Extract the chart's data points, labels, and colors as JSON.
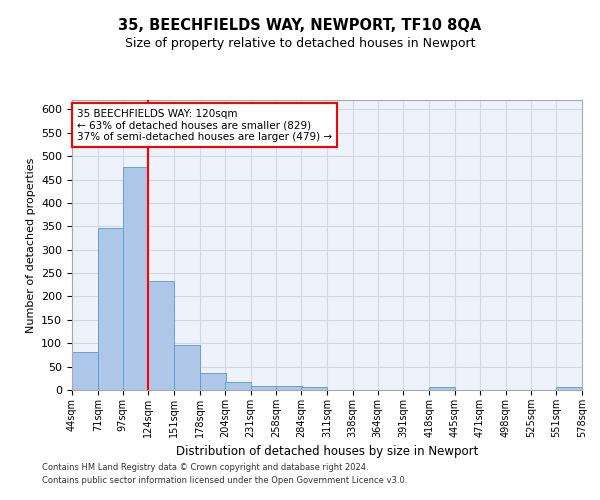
{
  "title1": "35, BEECHFIELDS WAY, NEWPORT, TF10 8QA",
  "title2": "Size of property relative to detached houses in Newport",
  "xlabel": "Distribution of detached houses by size in Newport",
  "ylabel": "Number of detached properties",
  "bins": [
    44,
    71,
    97,
    124,
    151,
    178,
    204,
    231,
    258,
    284,
    311,
    338,
    364,
    391,
    418,
    445,
    471,
    498,
    525,
    551,
    578
  ],
  "counts": [
    82,
    347,
    477,
    234,
    96,
    37,
    17,
    8,
    8,
    6,
    0,
    0,
    0,
    0,
    6,
    0,
    0,
    0,
    0,
    6
  ],
  "bar_color": "#aec6e8",
  "bar_edge_color": "#5a9ac9",
  "vline_x": 124,
  "vline_color": "red",
  "annotation_text": "35 BEECHFIELDS WAY: 120sqm\n← 63% of detached houses are smaller (829)\n37% of semi-detached houses are larger (479) →",
  "annotation_box_color": "red",
  "annotation_text_color": "black",
  "ylim": [
    0,
    620
  ],
  "yticks": [
    0,
    50,
    100,
    150,
    200,
    250,
    300,
    350,
    400,
    450,
    500,
    550,
    600
  ],
  "grid_color": "#d0d8e8",
  "background_color": "#eef2fa",
  "footer1": "Contains HM Land Registry data © Crown copyright and database right 2024.",
  "footer2": "Contains public sector information licensed under the Open Government Licence v3.0."
}
